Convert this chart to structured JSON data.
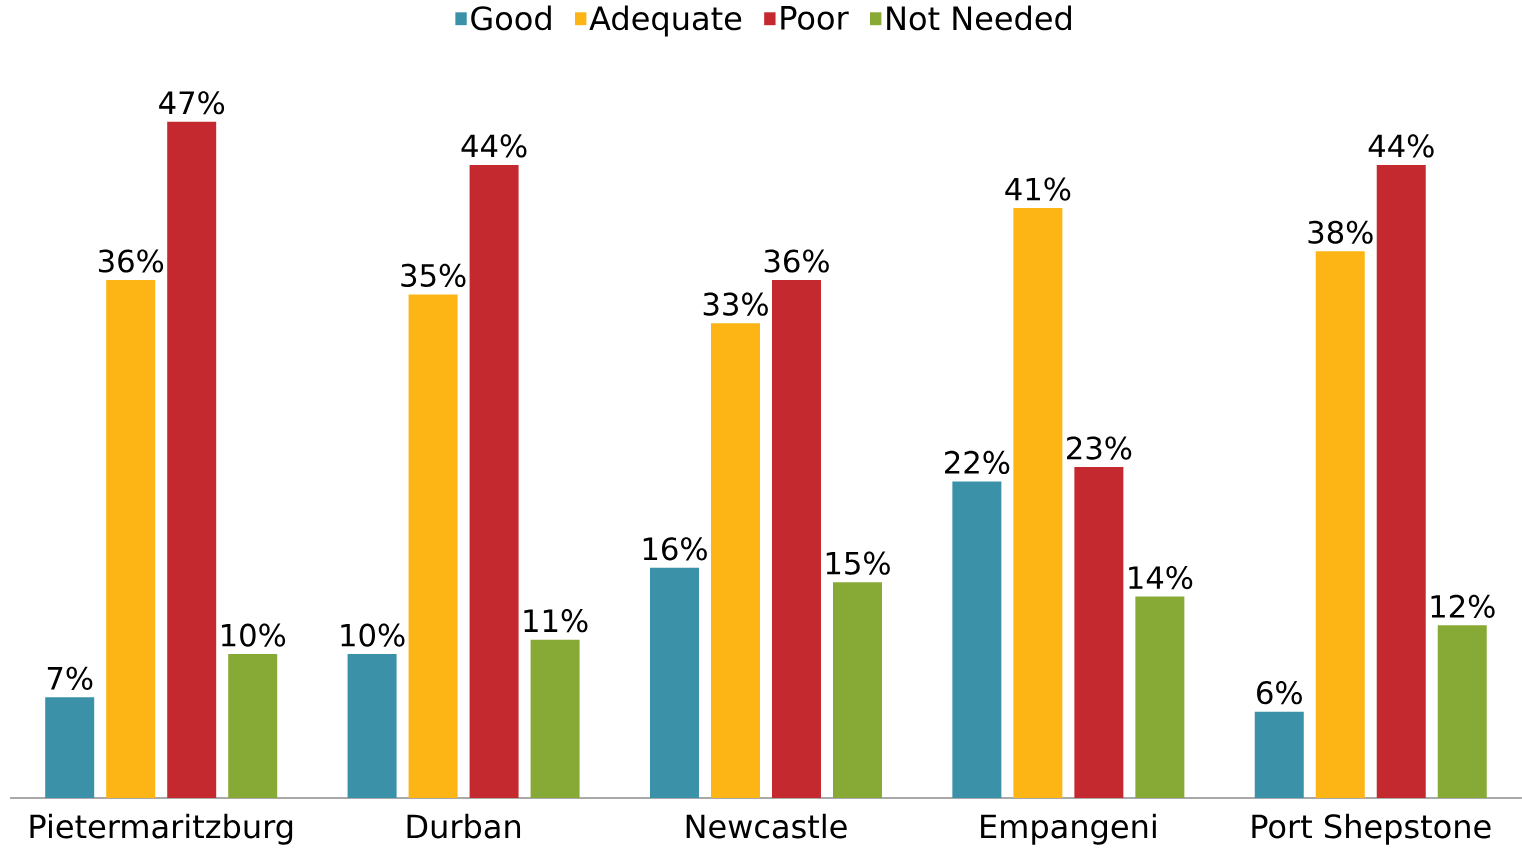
{
  "chart_data": {
    "type": "bar",
    "categories": [
      "Pietermaritzburg",
      "Durban",
      "Newcastle",
      "Empangeni",
      "Port Shepstone"
    ],
    "series": [
      {
        "name": "Good",
        "color": "#3a91a8",
        "values": [
          7,
          10,
          16,
          22,
          6
        ],
        "value_labels": [
          "7%",
          "10%",
          "16%",
          "22%",
          "6%"
        ]
      },
      {
        "name": "Adequate",
        "color": "#fdb515",
        "values": [
          36,
          35,
          33,
          41,
          38
        ],
        "value_labels": [
          "36%",
          "35%",
          "33%",
          "41%",
          "38%"
        ]
      },
      {
        "name": "Poor",
        "color": "#c3292e",
        "values": [
          47,
          44,
          36,
          23,
          44
        ],
        "value_labels": [
          "47%",
          "44%",
          "36%",
          "23%",
          "44%"
        ]
      },
      {
        "name": "Not Needed",
        "color": "#87a935",
        "values": [
          10,
          11,
          15,
          14,
          12
        ],
        "value_labels": [
          "10%",
          "11%",
          "15%",
          "14%",
          "12%"
        ]
      }
    ],
    "legend": "top"
  }
}
